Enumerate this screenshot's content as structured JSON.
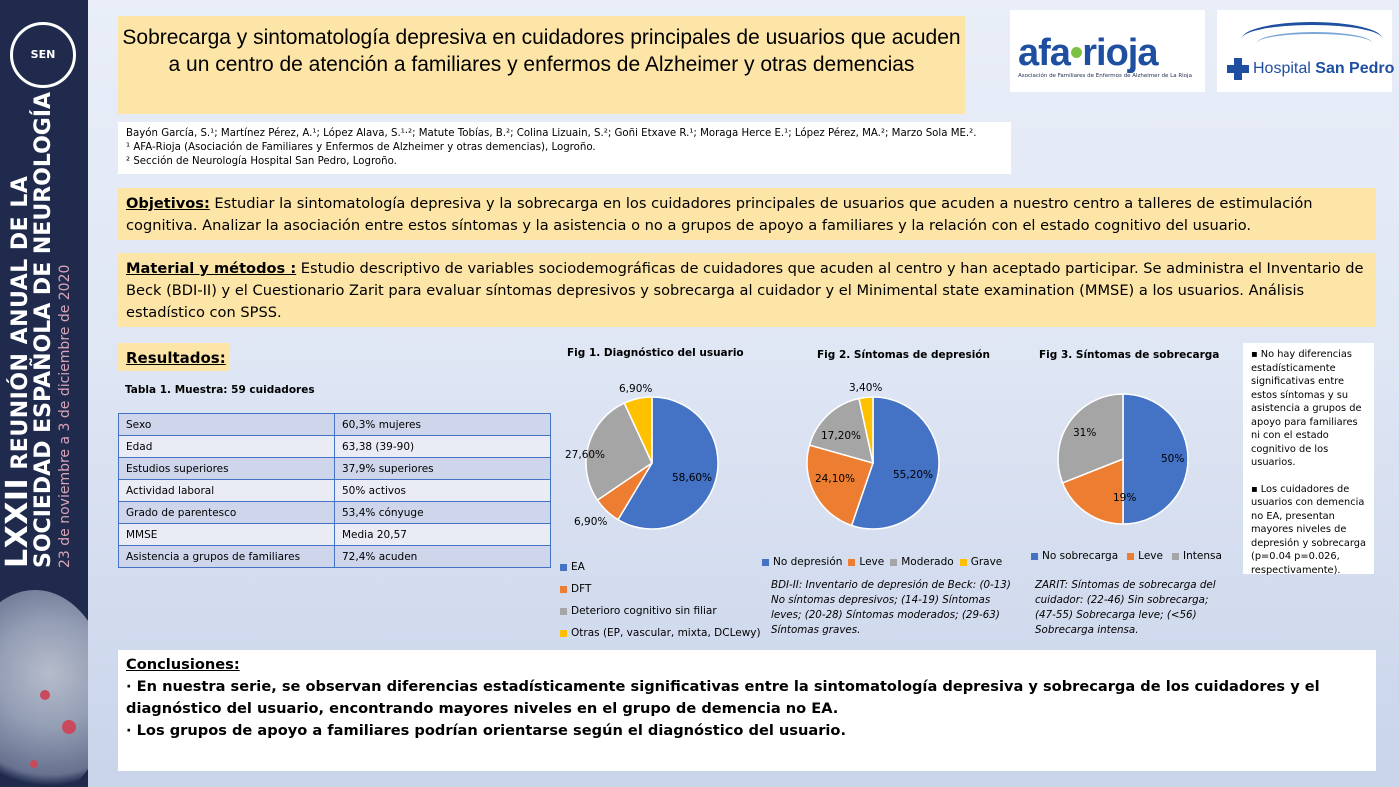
{
  "sidebar": {
    "logo": "SEN",
    "line1_big": "LXXII",
    "line1_rest": " REUNIÓN ANUAL DE LA",
    "line2": "SOCIEDAD ESPAÑOLA DE NEUROLOGÍA",
    "line3": "23 de noviembre a 3 de diciembre de 2020"
  },
  "title": "Sobrecarga y sintomatología depresiva en cuidadores principales de usuarios que acuden a un centro de atención a familiares y enfermos de Alzheimer y otras demencias",
  "logos": {
    "afa_a": "afa",
    "afa_b": "rioja",
    "afa_sub": "Asociación de Familiares de Enfermos de Alzheimer de La Rioja",
    "hospital_a": "Hospital",
    "hospital_b": "San Pedro"
  },
  "authors": {
    "list": "Bayón García, S.¹; Martínez Pérez, A.¹; López Alava, S.¹·²; Matute Tobías, B.²; Colina Lizuain, S.²; Goñi Etxave R.¹; Moraga Herce E.¹; López Pérez, MA.²; Marzo Sola ME.².",
    "aff1": "¹ AFA-Rioja (Asociación de Familiares y Enfermos de Alzheimer y otras demencias), Logroño.",
    "aff2": "² Sección de Neurología Hospital San Pedro, Logroño."
  },
  "objetivos": {
    "heading": "Objetivos:",
    "text": " Estudiar la sintomatología depresiva y la sobrecarga en los cuidadores principales de usuarios que acuden a nuestro centro a talleres de estimulación cognitiva. Analizar la asociación entre estos síntomas y la asistencia o no a grupos de apoyo a familiares y la relación con el estado cognitivo del usuario."
  },
  "metodos": {
    "heading": "Material y métodos :",
    "text": " Estudio descriptivo de variables sociodemográficas de cuidadores que acuden al centro y han aceptado participar. Se administra el Inventario de Beck (BDI-II) y el Cuestionario Zarit para evaluar síntomas depresivos y sobrecarga al cuidador y el Minimental state examination (MMSE) a los usuarios. Análisis estadístico con SPSS."
  },
  "resultados": {
    "heading": "Resultados:",
    "table_title": "Tabla 1. Muestra: 59 cuidadores",
    "rows": [
      [
        "Sexo",
        "60,3% mujeres"
      ],
      [
        "Edad",
        "63,38 (39-90)"
      ],
      [
        "Estudios superiores",
        "37,9% superiores"
      ],
      [
        "Actividad laboral",
        "50% activos"
      ],
      [
        "Grado de parentesco",
        "53,4% cónyuge"
      ],
      [
        "MMSE",
        "Media 20,57"
      ],
      [
        "Asistencia a grupos de familiares",
        "72,4% acuden"
      ]
    ]
  },
  "colors": {
    "blue": "#4472c4",
    "orange": "#ed7d31",
    "gray": "#a5a5a5",
    "yellow": "#ffc000"
  },
  "chart_data": [
    {
      "type": "pie",
      "title": "Fig 1. Diagnóstico del usuario",
      "categories": [
        "EA",
        "DFT",
        "Deterioro cognitivo sin filiar",
        "Otras (EP, vascular, mixta, DCLewy)"
      ],
      "values": [
        58.6,
        6.9,
        27.6,
        6.9
      ],
      "data_labels": [
        "58,60%",
        "6,90%",
        "27,60%",
        "6,90%"
      ],
      "legend_position": "bottom"
    },
    {
      "type": "pie",
      "title": "Fig 2. Síntomas de depresión",
      "categories": [
        "No depresión",
        "Leve",
        "Moderado",
        "Grave"
      ],
      "values": [
        55.2,
        24.1,
        17.2,
        3.4
      ],
      "data_labels": [
        "55,20%",
        "24,10%",
        "17,20%",
        "3,40%"
      ],
      "legend_position": "bottom"
    },
    {
      "type": "pie",
      "title": "Fig 3. Síntomas de sobrecarga",
      "categories": [
        "No sobrecarga",
        "Leve",
        "Intensa"
      ],
      "values": [
        50,
        19,
        31
      ],
      "data_labels": [
        "50%",
        "19%",
        "31%"
      ],
      "legend_position": "bottom"
    }
  ],
  "notes": {
    "bdi": "BDI-II: Inventario de depresión de Beck: (0-13) No síntomas depresivos; (14-19) Síntomas leves; (20-28) Síntomas moderados; (29-63) Síntomas graves.",
    "zarit": "ZARIT: Síntomas de sobrecarga del cuidador: (22-46) Sin sobrecarga; (47-55) Sobrecarga leve; (<56) Sobrecarga intensa."
  },
  "side_note": {
    "p1": "▪ No hay diferencias estadísticamente significativas entre estos síntomas y su asistencia a grupos de apoyo para familiares ni con el estado cognitivo de los usuarios.",
    "p2": "▪ Los cuidadores de usuarios con demencia no EA, presentan mayores niveles de depresión y sobrecarga (p=0.04 p=0.026, respectivamente)."
  },
  "conclusiones": {
    "heading": "Conclusiones:",
    "p1": "· En nuestra serie, se observan diferencias estadísticamente significativas entre la sintomatología depresiva y sobrecarga de los cuidadores y el diagnóstico del usuario, encontrando mayores niveles en el grupo de demencia no EA.",
    "p2": "· Los grupos de apoyo a familiares podrían orientarse según el diagnóstico del usuario."
  }
}
